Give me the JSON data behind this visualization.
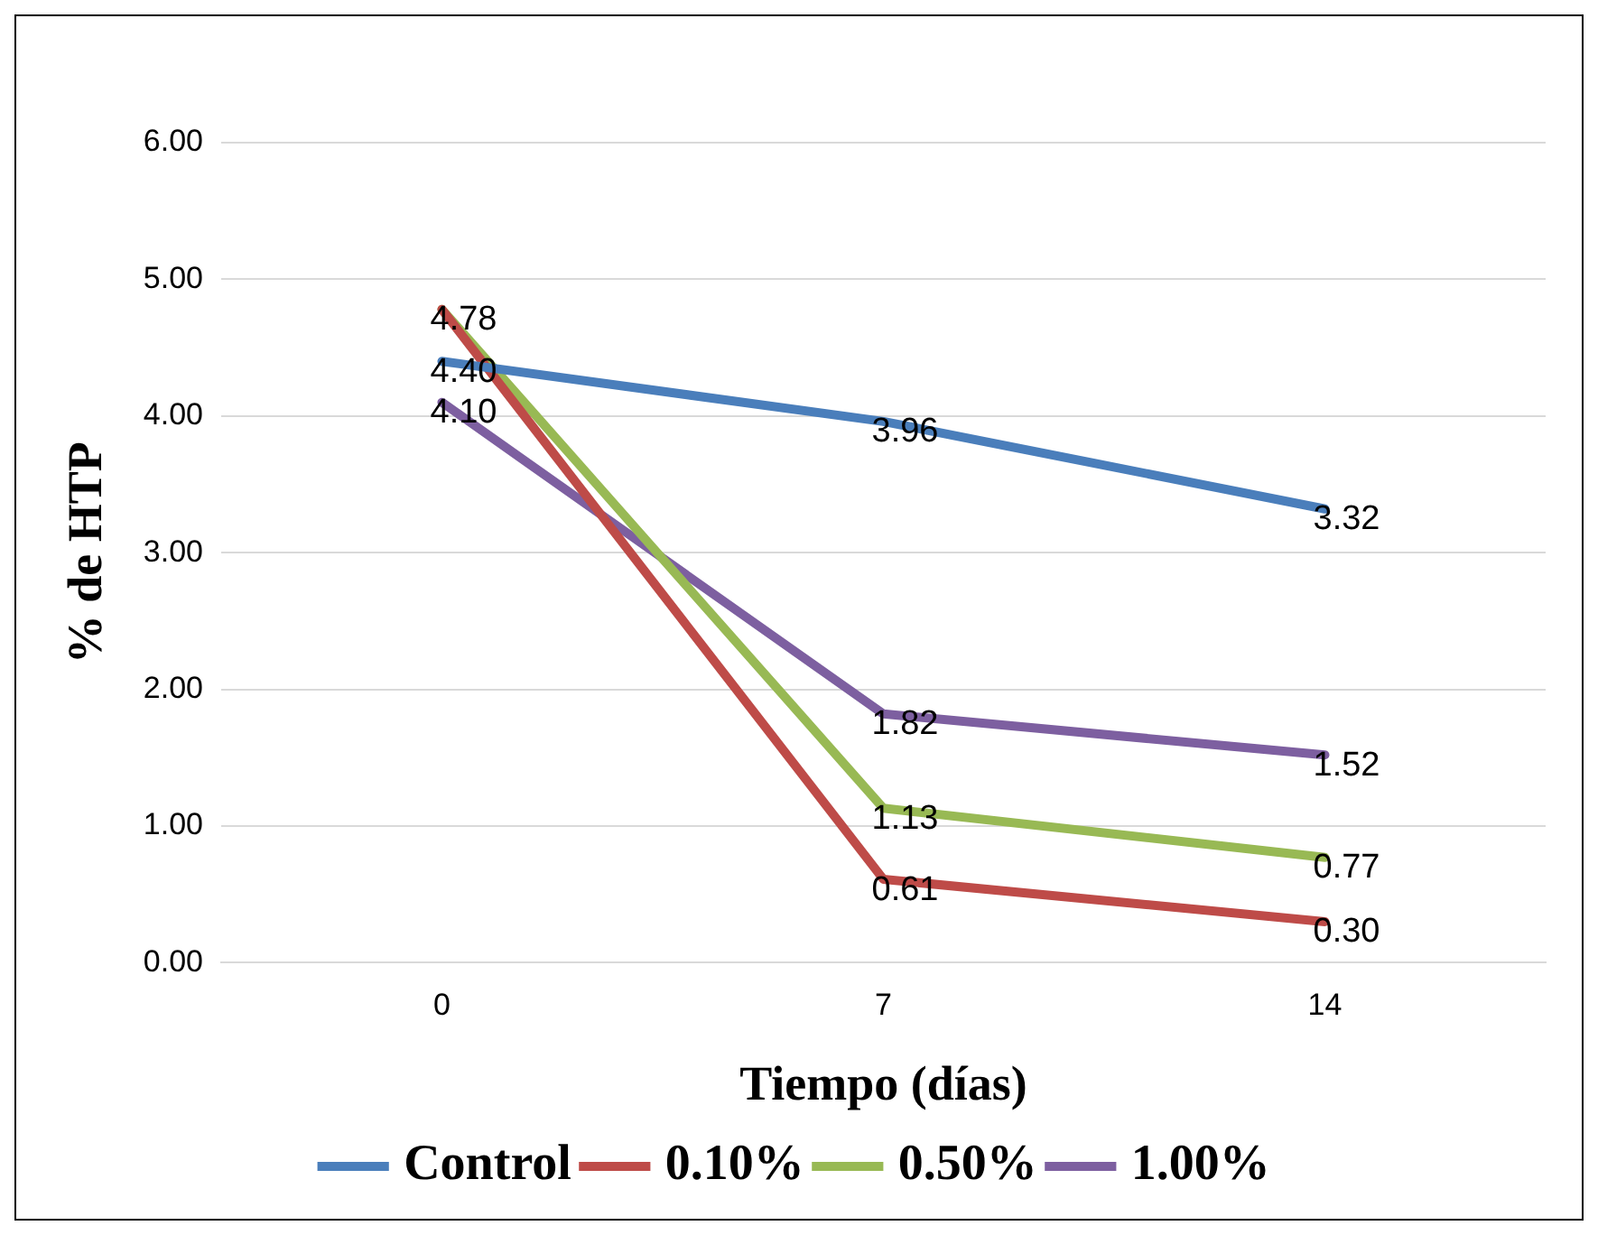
{
  "chart_data": {
    "type": "line",
    "xlabel": "Tiempo (días)",
    "ylabel": "% de HTP",
    "categories": [
      "0",
      "7",
      "14"
    ],
    "series": [
      {
        "name": "Control",
        "color": "#4a7ebb",
        "values": [
          4.4,
          3.96,
          3.32
        ],
        "value_labels": [
          "4.40",
          "3.96",
          "3.32"
        ]
      },
      {
        "name": "0.10%",
        "color": "#be4b48",
        "values": [
          4.78,
          0.61,
          0.3
        ],
        "value_labels": [
          null,
          "0.61",
          "0.30"
        ]
      },
      {
        "name": "0.50%",
        "color": "#98b954",
        "values": [
          4.78,
          1.13,
          0.77
        ],
        "value_labels": [
          "4.78",
          "1.13",
          "0.77"
        ]
      },
      {
        "name": "1.00%",
        "color": "#7d5fa0",
        "values": [
          4.1,
          1.82,
          1.52
        ],
        "value_labels": [
          "4.10",
          "1.82",
          "1.52"
        ]
      }
    ],
    "ylim": [
      0,
      6
    ],
    "yticks": [
      {
        "value": 0,
        "label": "0.00"
      },
      {
        "value": 1,
        "label": "1.00"
      },
      {
        "value": 2,
        "label": "2.00"
      },
      {
        "value": 3,
        "label": "3.00"
      },
      {
        "value": 4,
        "label": "4.00"
      },
      {
        "value": 5,
        "label": "5.00"
      },
      {
        "value": 6,
        "label": "6.00"
      }
    ],
    "grid": "y",
    "legend": "bottom",
    "marker": "none",
    "line_style": "solid"
  }
}
